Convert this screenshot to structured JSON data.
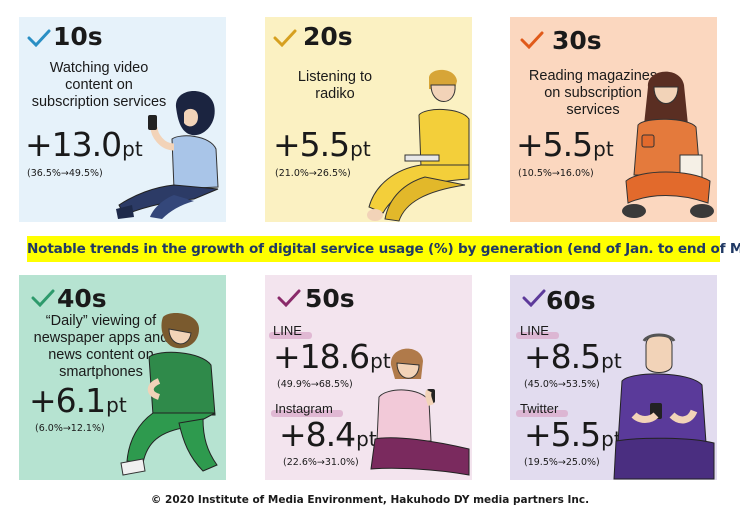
{
  "banner": "Notable trends in the growth of digital service usage (%) by generation (end of Jan. to end of May)",
  "footer": "© 2020 Institute of Media Environment, Hakuhodo DY media partners Inc.",
  "unit": "pt",
  "panels": [
    {
      "generation": "10s",
      "label": "Watching video content on subscription services",
      "label_lines": [
        "Watching video",
        "content on",
        "subscription services"
      ],
      "value": "+13.0",
      "range": "(36.5%→49.5%)",
      "color": "#e6f2fa",
      "check_color": "#2a8fc4"
    },
    {
      "generation": "20s",
      "label": "Listening to radiko",
      "label_lines": [
        "Listening to",
        "radiko"
      ],
      "value": "+5.5",
      "range": "(21.0%→26.5%)",
      "color": "#fbf1c2",
      "check_color": "#d6a020"
    },
    {
      "generation": "30s",
      "label": "Reading magazines on subscription services",
      "label_lines": [
        "Reading magazines",
        "on subscription",
        "services"
      ],
      "value": "+5.5",
      "range": "(10.5%→16.0%)",
      "color": "#fbd7bf",
      "check_color": "#e05a1a"
    },
    {
      "generation": "40s",
      "label": "“Daily” viewing of newspaper apps and news content on smartphones",
      "label_lines": [
        "“Daily” viewing of",
        "newspaper apps and",
        "news content on",
        "smartphones"
      ],
      "value": "+6.1",
      "range": "(6.0%→12.1%)",
      "color": "#b6e3d1",
      "check_color": "#2e9a6c"
    },
    {
      "generation": "50s",
      "items": [
        {
          "service": "LINE",
          "value": "+18.6",
          "range": "(49.9%→68.5%)"
        },
        {
          "service": "Instagram",
          "value": "+8.4",
          "range": "(22.6%→31.0%)"
        }
      ],
      "color": "#f3e4ee",
      "check_color": "#8a2a6a"
    },
    {
      "generation": "60s",
      "items": [
        {
          "service": "LINE",
          "value": "+8.5",
          "range": "(45.0%→53.5%)"
        },
        {
          "service": "Twitter",
          "value": "+5.5",
          "range": "(19.5%→25.0%)"
        }
      ],
      "color": "#e2dcef",
      "check_color": "#5d3a9a"
    }
  ]
}
